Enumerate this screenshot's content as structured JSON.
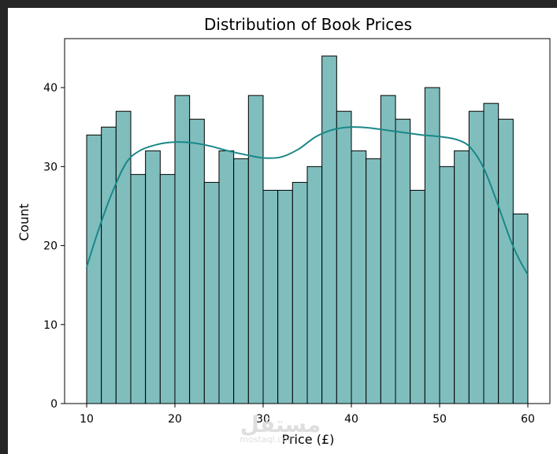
{
  "chart_data": {
    "type": "bar",
    "title": "Distribution of Book Prices",
    "xlabel": "Price (£)",
    "ylabel": "Count",
    "xlim": [
      7.5,
      62.5
    ],
    "ylim": [
      0,
      46.2
    ],
    "xticks": [
      10,
      20,
      30,
      40,
      50,
      60
    ],
    "yticks": [
      0,
      10,
      20,
      30,
      40
    ],
    "bin_start": 10,
    "bin_end": 60,
    "counts": [
      34,
      35,
      37,
      29,
      32,
      29,
      39,
      36,
      28,
      32,
      31,
      39,
      27,
      27,
      28,
      30,
      44,
      37,
      32,
      31,
      39,
      36,
      27,
      40,
      30,
      32,
      37,
      38,
      36,
      24
    ],
    "kde": {
      "x": [
        10,
        11.5,
        13,
        14.5,
        16,
        18,
        20,
        22,
        24,
        26,
        28,
        30,
        32,
        34,
        36,
        38,
        40,
        42,
        44,
        46,
        48,
        50,
        52,
        53.5,
        55,
        56.5,
        58,
        59,
        60
      ],
      "y": [
        17.3,
        22.5,
        27,
        30.5,
        32,
        32.8,
        33.1,
        33.0,
        32.6,
        32.0,
        31.5,
        31.1,
        31.2,
        32.2,
        33.8,
        34.7,
        35.0,
        34.9,
        34.6,
        34.3,
        34.0,
        33.8,
        33.4,
        32.4,
        29.8,
        25.5,
        20.8,
        18.3,
        16.3
      ]
    },
    "bar_fill": "#80bebe",
    "bar_edge": "#000000",
    "kde_color": "#1b8788",
    "grid": false
  },
  "watermark": {
    "text": "مستقل",
    "sub": "mostaql.com"
  }
}
